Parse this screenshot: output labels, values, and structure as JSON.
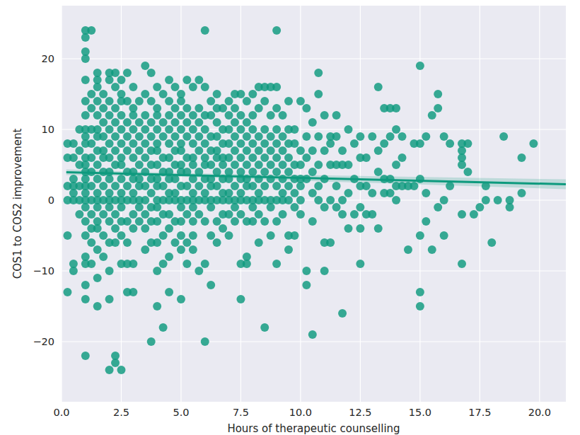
{
  "chart_data": {
    "type": "scatter",
    "x_label": "Hours of therapeutic counselling",
    "y_label": "COS1 to COS2 improvement",
    "xlim": [
      0,
      21.1
    ],
    "ylim": [
      -28.5,
      27.5
    ],
    "xticks": [
      {
        "value": 0,
        "label": "0.0"
      },
      2.5,
      {
        "value": 5,
        "label": "5.0"
      },
      7.5,
      {
        "value": 10,
        "label": "10.0"
      },
      12.5,
      {
        "value": 15,
        "label": "15.0"
      },
      17.5,
      {
        "value": 20,
        "label": "20.0"
      }
    ],
    "yticks": [
      {
        "value": -20,
        "label": "−20"
      },
      {
        "value": -10,
        "label": "−10"
      },
      0,
      10,
      20
    ],
    "grid": true,
    "series": [
      {
        "type": "scatter",
        "color": "#0e9a7e",
        "marker": "circle",
        "x": [
          0.25,
          0.25,
          0.25,
          0.25,
          0.25,
          0.25,
          0.5,
          0.5,
          0.5,
          0.5,
          0.5,
          0.5,
          0.5,
          0.5,
          0.75,
          0.75,
          0.75,
          0.75,
          0.75,
          0.75,
          1,
          1,
          1,
          1,
          1,
          1,
          1,
          1,
          1,
          1,
          1,
          1,
          1,
          1,
          1,
          1,
          1,
          1,
          1,
          1,
          1,
          1,
          1,
          1,
          1,
          1.25,
          1.25,
          1.25,
          1.25,
          1.25,
          1.25,
          1.25,
          1.25,
          1.25,
          1.25,
          1.25,
          1.25,
          1.25,
          1.5,
          1.5,
          1.5,
          1.5,
          1.5,
          1.5,
          1.5,
          1.5,
          1.5,
          1.5,
          1.5,
          1.5,
          1.5,
          1.5,
          1.5,
          1.5,
          1.5,
          1.5,
          1.75,
          1.75,
          1.75,
          1.75,
          1.75,
          1.75,
          1.75,
          1.75,
          1.75,
          1.75,
          1.75,
          1.75,
          2,
          2,
          2,
          2,
          2,
          2,
          2,
          2,
          2,
          2,
          2,
          2,
          2,
          2,
          2,
          2,
          2,
          2.25,
          2.25,
          2.25,
          2.25,
          2.25,
          2.25,
          2.25,
          2.25,
          2.25,
          2.25,
          2.25,
          2.25,
          2.25,
          2.25,
          2.5,
          2.5,
          2.5,
          2.5,
          2.5,
          2.5,
          2.5,
          2.5,
          2.5,
          2.5,
          2.5,
          2.5,
          2.5,
          2.5,
          2.5,
          2.5,
          2.75,
          2.75,
          2.75,
          2.75,
          2.75,
          2.75,
          2.75,
          2.75,
          2.75,
          2.75,
          2.75,
          2.75,
          3,
          3,
          3,
          3,
          3,
          3,
          3,
          3,
          3,
          3,
          3,
          3,
          3,
          3,
          3.25,
          3.25,
          3.25,
          3.25,
          3.25,
          3.25,
          3.25,
          3.25,
          3.25,
          3.25,
          3.5,
          3.5,
          3.5,
          3.5,
          3.5,
          3.5,
          3.5,
          3.5,
          3.5,
          3.5,
          3.5,
          3.5,
          3.75,
          3.75,
          3.75,
          3.75,
          3.75,
          3.75,
          3.75,
          3.75,
          3.75,
          3.75,
          3.75,
          3.75,
          4,
          4,
          4,
          4,
          4,
          4,
          4,
          4,
          4,
          4,
          4,
          4,
          4,
          4,
          4,
          4.25,
          4.25,
          4.25,
          4.25,
          4.25,
          4.25,
          4.25,
          4.25,
          4.25,
          4.25,
          4.25,
          4.5,
          4.5,
          4.5,
          4.5,
          4.5,
          4.5,
          4.5,
          4.5,
          4.5,
          4.5,
          4.5,
          4.5,
          4.5,
          4.5,
          4.75,
          4.75,
          4.75,
          4.75,
          4.75,
          4.75,
          4.75,
          4.75,
          4.75,
          4.75,
          4.75,
          5,
          5,
          5,
          5,
          5,
          5,
          5,
          5,
          5,
          5,
          5,
          5,
          5,
          5,
          5,
          5.25,
          5.25,
          5.25,
          5.25,
          5.25,
          5.25,
          5.25,
          5.25,
          5.25,
          5.25,
          5.25,
          5.5,
          5.5,
          5.5,
          5.5,
          5.5,
          5.5,
          5.5,
          5.5,
          5.5,
          5.5,
          5.5,
          5.5,
          5.5,
          5.75,
          5.75,
          5.75,
          5.75,
          5.75,
          5.75,
          5.75,
          5.75,
          5.75,
          5.75,
          6,
          6,
          6,
          6,
          6,
          6,
          6,
          6,
          6,
          6,
          6,
          6,
          6,
          6.25,
          6.25,
          6.25,
          6.25,
          6.25,
          6.25,
          6.25,
          6.25,
          6.25,
          6.25,
          6.25,
          6.5,
          6.5,
          6.5,
          6.5,
          6.5,
          6.5,
          6.5,
          6.5,
          6.5,
          6.5,
          6.5,
          6.75,
          6.75,
          6.75,
          6.75,
          6.75,
          6.75,
          6.75,
          6.75,
          6.75,
          6.75,
          7,
          7,
          7,
          7,
          7,
          7,
          7,
          7,
          7,
          7,
          7,
          7.25,
          7.25,
          7.25,
          7.25,
          7.25,
          7.25,
          7.25,
          7.25,
          7.25,
          7.25,
          7.5,
          7.5,
          7.5,
          7.5,
          7.5,
          7.5,
          7.5,
          7.5,
          7.5,
          7.5,
          7.5,
          7.5,
          7.75,
          7.75,
          7.75,
          7.75,
          7.75,
          7.75,
          7.75,
          7.75,
          7.75,
          7.75,
          7.75,
          8,
          8,
          8,
          8,
          8,
          8,
          8,
          8,
          8,
          8,
          8.25,
          8.25,
          8.25,
          8.25,
          8.25,
          8.25,
          8.25,
          8.25,
          8.25,
          8.25,
          8.5,
          8.5,
          8.5,
          8.5,
          8.5,
          8.5,
          8.5,
          8.5,
          8.5,
          8.5,
          8.75,
          8.75,
          8.75,
          8.75,
          8.75,
          8.75,
          8.75,
          8.75,
          8.75,
          9,
          9,
          9,
          9,
          9,
          9,
          9,
          9,
          9,
          9,
          9,
          9.25,
          9.25,
          9.25,
          9.25,
          9.25,
          9.25,
          9.25,
          9.25,
          9.5,
          9.5,
          9.5,
          9.5,
          9.5,
          9.5,
          9.5,
          9.5,
          9.5,
          9.75,
          9.75,
          9.75,
          9.75,
          9.75,
          9.75,
          9.75,
          10,
          10,
          10,
          10,
          10,
          10,
          10,
          10.25,
          10.25,
          10.25,
          10.25,
          10.25,
          10.25,
          10.5,
          10.5,
          10.5,
          10.5,
          10.5,
          10.5,
          10.75,
          10.75,
          10.75,
          10.75,
          10.75,
          10.75,
          11,
          11,
          11,
          11,
          11,
          11,
          11.25,
          11.25,
          11.25,
          11.25,
          11.25,
          11.5,
          11.5,
          11.5,
          11.5,
          11.5,
          11.75,
          11.75,
          11.75,
          11.75,
          11.75,
          12,
          12,
          12,
          12,
          12.25,
          12.25,
          12.25,
          12.5,
          12.5,
          12.5,
          12.5,
          12.5,
          12.5,
          12.75,
          12.75,
          12.75,
          13,
          13,
          13,
          13.25,
          13.25,
          13.25,
          13.25,
          13.5,
          13.5,
          13.5,
          13.5,
          13.75,
          13.75,
          13.75,
          13.75,
          14,
          14,
          14,
          14,
          14,
          14.25,
          14.25,
          14.25,
          14.5,
          14.5,
          14.75,
          14.75,
          15,
          15,
          15,
          15,
          15,
          15,
          15.25,
          15.25,
          15.25,
          15.5,
          15.5,
          15.75,
          15.75,
          15.75,
          16,
          16,
          16,
          16.25,
          16.25,
          16.75,
          16.75,
          16.75,
          16.75,
          16.75,
          16.75,
          17,
          17,
          17.25,
          17.5,
          17.75,
          17.75,
          18,
          18.25,
          18.5,
          18.75,
          18.75,
          19.25,
          19.25,
          19.75
        ],
        "values": [
          8,
          6,
          0,
          -5,
          -13,
          2,
          8,
          6,
          0,
          1,
          -10,
          -9,
          2,
          3,
          10,
          5,
          2,
          0,
          -2,
          7,
          24,
          23,
          21,
          20,
          17,
          14,
          12,
          10,
          9,
          8,
          6,
          5,
          4,
          3,
          2,
          1,
          0,
          -1,
          -3,
          -5,
          -8,
          -9,
          -12,
          -14,
          -22,
          24,
          15,
          13,
          10,
          8,
          6,
          4,
          2,
          0,
          -2,
          -4,
          -6,
          -9,
          18,
          17,
          16,
          14,
          12,
          10,
          9,
          7,
          5,
          3,
          1,
          0,
          -1,
          -3,
          -4,
          -7,
          -11,
          -15,
          15,
          13,
          11,
          9,
          7,
          6,
          4,
          2,
          0,
          -2,
          -5,
          -8,
          18,
          17,
          14,
          12,
          10,
          8,
          6,
          4,
          3,
          1,
          0,
          -1,
          -3,
          -6,
          -10,
          -14,
          -24,
          18,
          16,
          13,
          11,
          9,
          7,
          5,
          2,
          0,
          -2,
          -4,
          -6,
          -22,
          -23,
          17,
          15,
          14,
          12,
          10,
          8,
          6,
          5,
          3,
          1,
          0,
          -1,
          -3,
          -5,
          -9,
          -24,
          18,
          14,
          11,
          9,
          7,
          4,
          2,
          0,
          -3,
          -6,
          -9,
          -13,
          16,
          13,
          12,
          10,
          8,
          6,
          4,
          3,
          1,
          0,
          -2,
          -4,
          -9,
          -13,
          14,
          11,
          9,
          7,
          5,
          3,
          2,
          0,
          -1,
          -3,
          19,
          15,
          12,
          10,
          8,
          6,
          4,
          2,
          0,
          -2,
          -4,
          -7,
          18,
          14,
          11,
          9,
          7,
          5,
          3,
          1,
          -1,
          -3,
          -6,
          -20,
          16,
          13,
          12,
          10,
          8,
          7,
          5,
          3,
          2,
          0,
          -1,
          -3,
          -6,
          -10,
          -15,
          15,
          11,
          9,
          6,
          4,
          2,
          0,
          -2,
          -5,
          -9,
          -18,
          17,
          14,
          12,
          10,
          8,
          6,
          4,
          3,
          1,
          0,
          -2,
          -4,
          -8,
          -13,
          16,
          13,
          11,
          9,
          7,
          5,
          3,
          1,
          0,
          -3,
          -6,
          15,
          14,
          12,
          10,
          8,
          7,
          5,
          4,
          2,
          0,
          -1,
          -3,
          -5,
          -7,
          -14,
          17,
          13,
          11,
          9,
          6,
          4,
          2,
          0,
          -2,
          -6,
          -9,
          16,
          12,
          10,
          8,
          6,
          5,
          3,
          1,
          0,
          -1,
          -3,
          -5,
          -7,
          17,
          13,
          11,
          9,
          7,
          4,
          2,
          0,
          -2,
          -10,
          24,
          16,
          12,
          10,
          8,
          6,
          5,
          3,
          1,
          0,
          -3,
          -9,
          -20,
          14,
          12,
          9,
          7,
          5,
          3,
          2,
          0,
          -1,
          -5,
          -12,
          15,
          13,
          11,
          9,
          7,
          6,
          4,
          2,
          0,
          -3,
          -6,
          13,
          10,
          8,
          6,
          5,
          3,
          1,
          0,
          -2,
          -4,
          14,
          12,
          10,
          8,
          6,
          4,
          3,
          1,
          0,
          -2,
          -5,
          15,
          13,
          11,
          9,
          7,
          5,
          2,
          0,
          -1,
          -3,
          15,
          12,
          10,
          8,
          6,
          4,
          3,
          1,
          0,
          -2,
          -9,
          -14,
          14,
          11,
          9,
          7,
          5,
          3,
          2,
          0,
          -3,
          -8,
          -9,
          15,
          12,
          10,
          8,
          6,
          4,
          2,
          0,
          -1,
          -3,
          16,
          13,
          9,
          7,
          5,
          3,
          1,
          0,
          -2,
          -6,
          16,
          14,
          10,
          8,
          6,
          4,
          2,
          0,
          -3,
          -18,
          16,
          12,
          9,
          7,
          5,
          3,
          0,
          -1,
          -5,
          24,
          16,
          13,
          10,
          8,
          6,
          4,
          2,
          0,
          -3,
          -9,
          12,
          9,
          7,
          5,
          3,
          1,
          0,
          -2,
          14,
          10,
          8,
          6,
          4,
          2,
          0,
          -5,
          -7,
          10,
          8,
          5,
          3,
          1,
          -1,
          -5,
          14,
          7,
          5,
          3,
          2,
          0,
          -2,
          13,
          9,
          6,
          3,
          -10,
          -12,
          11,
          7,
          4,
          1,
          -3,
          -19,
          18,
          15,
          9,
          5,
          2,
          0,
          12,
          7,
          3,
          -1,
          -6,
          -10,
          9,
          8,
          5,
          0,
          -6,
          12,
          9,
          5,
          2,
          -1,
          7,
          5,
          0,
          -2,
          -16,
          10,
          5,
          1,
          -4,
          8,
          3,
          -2,
          9,
          6,
          2,
          -1,
          -4,
          -9,
          6,
          2,
          -2,
          9,
          1,
          -2,
          16,
          7,
          4,
          -4,
          13,
          8,
          3,
          1,
          13,
          9,
          3,
          1,
          13,
          10,
          5,
          2,
          0,
          9,
          6,
          2,
          2,
          -7,
          8,
          2,
          19,
          8,
          3,
          -5,
          -13,
          -15,
          9,
          1,
          -3,
          12,
          -7,
          15,
          13,
          -1,
          9,
          0,
          -5,
          8,
          2,
          8,
          7,
          6,
          5,
          -2,
          -9,
          8,
          4,
          -2,
          -1,
          2,
          0,
          -6,
          0,
          9,
          0,
          -1,
          6,
          1,
          8
        ]
      },
      {
        "type": "line",
        "color": "#0e9a7e",
        "x": [
          0.2,
          5,
          21.1
        ],
        "values": [
          3.95,
          3.56,
          2.25
        ],
        "lower": [
          3.55,
          3.3,
          1.55
        ],
        "upper": [
          4.35,
          3.82,
          2.95
        ]
      }
    ]
  }
}
